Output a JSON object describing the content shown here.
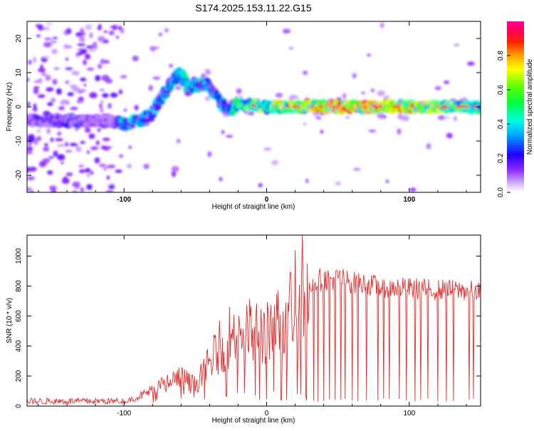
{
  "chart_data": [
    {
      "type": "heatmap",
      "title": "S174.2025.153.11.22.G15",
      "xlabel": "Height of straight line (km)",
      "ylabel": "Frequency (Hz)",
      "xlim": [
        -168,
        150
      ],
      "ylim": [
        -25,
        25
      ],
      "xticks": [
        -100,
        0,
        100
      ],
      "yticks": [
        -20,
        -10,
        0,
        10,
        20
      ],
      "colorbar": {
        "label": "Normalized spectral amplitude",
        "range": [
          0,
          1
        ],
        "ticks": [
          0.0,
          0.2,
          0.4,
          0.6,
          0.8
        ],
        "tick_labels": [
          "0.0",
          "0.2",
          "0.4",
          "0.6",
          "0.8"
        ],
        "colormap": "rainbow (white-purple-blue-cyan-green-yellow-red-magenta)"
      },
      "ridge": {
        "x": [
          -168,
          -150,
          -130,
          -110,
          -100,
          -90,
          -80,
          -75,
          -70,
          -65,
          -60,
          -55,
          -50,
          -45,
          -40,
          -35,
          -30,
          -25,
          -20,
          0,
          50,
          100,
          150
        ],
        "y": [
          -4,
          -4,
          -4,
          -4,
          -5,
          -4,
          -2,
          2,
          5,
          8,
          10,
          5,
          6,
          7,
          6,
          3,
          0,
          -1,
          1,
          0,
          0,
          0,
          0
        ],
        "amplitude": [
          0.2,
          0.25,
          0.25,
          0.15,
          0.45,
          0.45,
          0.4,
          0.4,
          0.45,
          0.45,
          0.5,
          0.5,
          0.5,
          0.45,
          0.45,
          0.4,
          0.4,
          0.35,
          0.65,
          0.65,
          0.95,
          0.9,
          0.55
        ]
      }
    },
    {
      "type": "line",
      "xlabel": "Height of straight line (km)",
      "ylabel": "SNR (10 * v/v)",
      "xlim": [
        -168,
        150
      ],
      "ylim": [
        0,
        1140
      ],
      "xticks": [
        -100,
        0,
        100
      ],
      "yticks": [
        0,
        200,
        400,
        600,
        800,
        1000
      ],
      "color": "#e53030",
      "envelope": {
        "x": [
          -168,
          -120,
          -100,
          -90,
          -80,
          -70,
          -60,
          -50,
          -40,
          -30,
          -20,
          -10,
          0,
          10,
          20,
          30,
          40,
          50,
          60,
          80,
          100,
          120,
          150
        ],
        "y": [
          30,
          25,
          30,
          70,
          120,
          180,
          220,
          160,
          330,
          500,
          600,
          560,
          580,
          650,
          780,
          850,
          870,
          880,
          850,
          820,
          810,
          800,
          790
        ]
      },
      "dropouts_x": [
        -5,
        0,
        5,
        10,
        14,
        20,
        24,
        28,
        33,
        36,
        40,
        44,
        48,
        52,
        55,
        60,
        64,
        70,
        78,
        82,
        86,
        93,
        98,
        104,
        108,
        113,
        120,
        126,
        131,
        142,
        145
      ]
    }
  ]
}
